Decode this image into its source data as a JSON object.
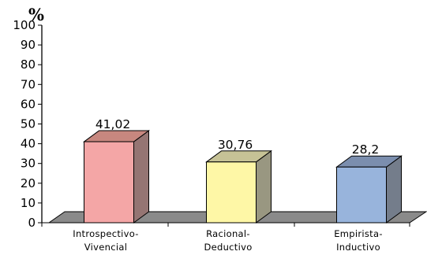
{
  "chart_data": {
    "type": "bar",
    "categories": [
      [
        "Introspectivo-",
        "Vivencial"
      ],
      [
        "Racional-",
        "Deductivo"
      ],
      [
        "Empirista-",
        "Inductivo"
      ]
    ],
    "values": [
      41.02,
      30.76,
      28.2
    ],
    "data_labels": [
      "41,02",
      "30,76",
      "28,2"
    ],
    "ylabel": "%",
    "ylim": [
      0,
      100
    ],
    "yticks": [
      0,
      10,
      20,
      30,
      40,
      50,
      60,
      70,
      80,
      90,
      100
    ],
    "grid": false,
    "style": "3d-column",
    "colors": {
      "bars": [
        "#f4a6a6",
        "#fef7a6",
        "#98b4dc"
      ],
      "sides": [
        "#957573",
        "#999781",
        "#747d8b"
      ],
      "tops": [
        "#c7877f",
        "#c6c296",
        "#7b8eae"
      ],
      "floor": "#8a8a8a"
    }
  }
}
